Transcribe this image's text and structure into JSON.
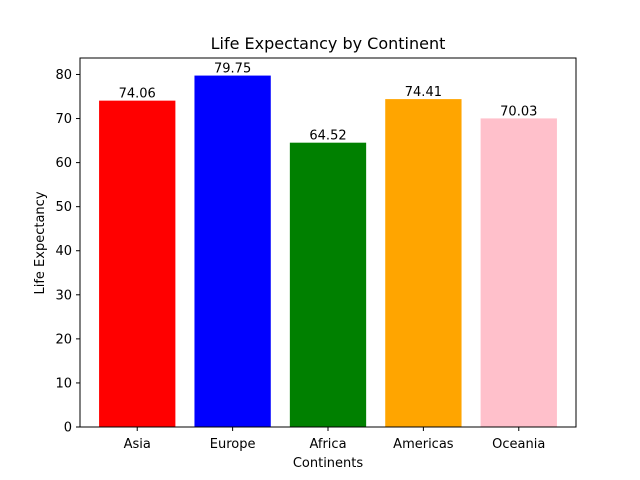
{
  "chart_data": {
    "type": "bar",
    "title": "Life Expectancy by Continent",
    "xlabel": "Continents",
    "ylabel": "Life Expectancy",
    "categories": [
      "Asia",
      "Europe",
      "Africa",
      "Americas",
      "Oceania"
    ],
    "values": [
      74.06,
      79.75,
      64.52,
      74.41,
      70.03
    ],
    "value_labels": [
      "74.06",
      "79.75",
      "64.52",
      "74.41",
      "70.03"
    ],
    "colors": [
      "#ff0000",
      "#0000ff",
      "#008000",
      "#ffa500",
      "#ffc0cb"
    ],
    "ylim": [
      0,
      83.7375
    ],
    "yticks": [
      0,
      10,
      20,
      30,
      40,
      50,
      60,
      70,
      80
    ],
    "grid": false,
    "legend": false
  }
}
